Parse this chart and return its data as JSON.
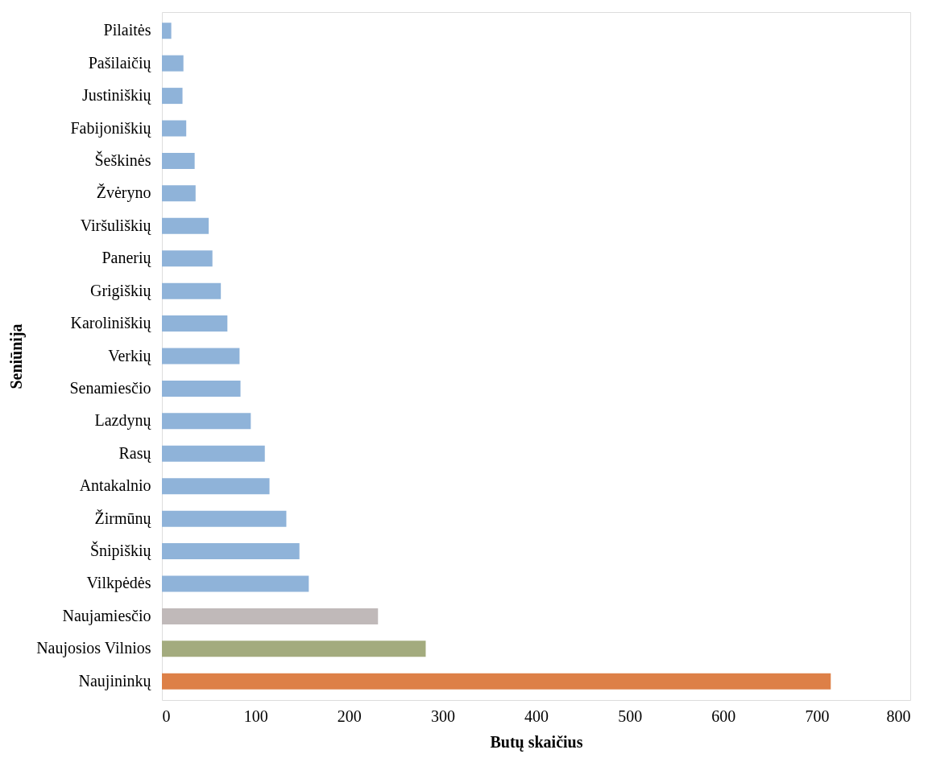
{
  "chart_data": {
    "type": "bar",
    "orientation": "horizontal",
    "xlabel": "Butų skaičius",
    "ylabel": "Seniūnija",
    "categories": [
      "Pilaitės",
      "Pašilaičių",
      "Justiniškių",
      "Fabijoniškių",
      "Šeškinės",
      "Žvėryno",
      "Viršuliškių",
      "Panerių",
      "Grigiškių",
      "Karoliniškių",
      "Verkių",
      "Senamiesčio",
      "Lazdynų",
      "Rasų",
      "Antakalnio",
      "Žirmūnų",
      "Šnipiškių",
      "Vilkpėdės",
      "Naujamiesčio",
      "Naujosios Vilnios",
      "Naujininkų"
    ],
    "values": [
      10,
      23,
      22,
      26,
      35,
      36,
      50,
      54,
      63,
      70,
      83,
      84,
      95,
      110,
      115,
      133,
      147,
      157,
      231,
      282,
      715
    ],
    "colors": [
      "#8fb3d9",
      "#8fb3d9",
      "#8fb3d9",
      "#8fb3d9",
      "#8fb3d9",
      "#8fb3d9",
      "#8fb3d9",
      "#8fb3d9",
      "#8fb3d9",
      "#8fb3d9",
      "#8fb3d9",
      "#8fb3d9",
      "#8fb3d9",
      "#8fb3d9",
      "#8fb3d9",
      "#8fb3d9",
      "#8fb3d9",
      "#8fb3d9",
      "#c0b9b9",
      "#a3ab7e",
      "#dd8047"
    ],
    "xlim": [
      0,
      800
    ],
    "xticks": [
      0,
      100,
      200,
      300,
      400,
      500,
      600,
      700,
      800
    ],
    "grid": false
  }
}
